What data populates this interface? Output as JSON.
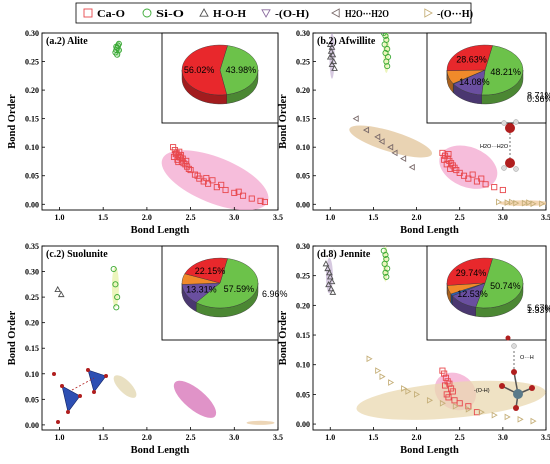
{
  "legend": {
    "items": [
      {
        "label": "Ca-O",
        "marker": "square",
        "color": "#e8474c"
      },
      {
        "label": "Si-O",
        "marker": "circle",
        "color": "#3aa935"
      },
      {
        "label": "H-O-H",
        "marker": "triangle-up",
        "color": "#505050"
      },
      {
        "label": "-(O-H)",
        "marker": "triangle-down",
        "color": "#8a6a9e"
      },
      {
        "label": "H2O···H2O",
        "marker": "triangle-left",
        "color": "#7a6a6a"
      },
      {
        "label": "-(O···H)",
        "marker": "triangle-right",
        "color": "#c6b07a"
      }
    ]
  },
  "chart_data": [
    {
      "type": "scatter",
      "title": "(a.2) Alite",
      "xlabel": "Bond Length",
      "ylabel": "Bond Order",
      "xlim": [
        0.8,
        3.5
      ],
      "ylim": [
        -0.01,
        0.3
      ],
      "xticks": [
        "1.0",
        "1.5",
        "2.0",
        "2.5",
        "3.0",
        "3.5"
      ],
      "yticks": [
        "0.00",
        "0.05",
        "0.10",
        "0.15",
        "0.20",
        "0.25",
        "0.30"
      ],
      "regions": [
        {
          "series": "Si-O",
          "cx": 1.67,
          "cy": 0.272,
          "rx": 0.035,
          "ry": 0.014,
          "angle": 0,
          "color": "#9fd89a"
        },
        {
          "series": "Ca-O",
          "cx": 2.78,
          "cy": 0.042,
          "rx": 0.65,
          "ry": 0.04,
          "angle": 22,
          "color": "#f3a7cf"
        }
      ],
      "series": [
        {
          "name": "Si-O",
          "marker": "circle",
          "color": "#3aa935",
          "points": [
            [
              1.64,
              0.266
            ],
            [
              1.65,
              0.27
            ],
            [
              1.66,
              0.274
            ],
            [
              1.67,
              0.278
            ],
            [
              1.68,
              0.281
            ],
            [
              1.66,
              0.262
            ],
            [
              1.68,
              0.27
            ],
            [
              1.65,
              0.276
            ]
          ]
        },
        {
          "name": "Ca-O",
          "marker": "square",
          "color": "#e8474c",
          "points": [
            [
              2.3,
              0.1
            ],
            [
              2.32,
              0.095
            ],
            [
              2.34,
              0.09
            ],
            [
              2.36,
              0.085
            ],
            [
              2.38,
              0.082
            ],
            [
              2.35,
              0.078
            ],
            [
              2.4,
              0.075
            ],
            [
              2.42,
              0.072
            ],
            [
              2.33,
              0.088
            ],
            [
              2.37,
              0.092
            ],
            [
              2.41,
              0.08
            ],
            [
              2.44,
              0.07
            ],
            [
              2.46,
              0.066
            ],
            [
              2.48,
              0.062
            ],
            [
              2.39,
              0.086
            ],
            [
              2.31,
              0.083
            ],
            [
              2.36,
              0.074
            ],
            [
              2.45,
              0.076
            ],
            [
              2.5,
              0.06
            ],
            [
              2.55,
              0.052
            ],
            [
              2.6,
              0.045
            ],
            [
              2.65,
              0.04
            ],
            [
              2.7,
              0.036
            ],
            [
              2.8,
              0.03
            ],
            [
              2.9,
              0.025
            ],
            [
              3.0,
              0.02
            ],
            [
              3.1,
              0.015
            ],
            [
              3.2,
              0.01
            ],
            [
              3.3,
              0.006
            ],
            [
              3.35,
              0.004
            ],
            [
              2.75,
              0.042
            ],
            [
              2.58,
              0.05
            ],
            [
              2.68,
              0.046
            ],
            [
              2.85,
              0.034
            ],
            [
              3.05,
              0.022
            ]
          ]
        }
      ],
      "pie": {
        "segments": [
          {
            "label": "43.98%",
            "value": 43.98,
            "color": "#6cc24a"
          },
          {
            "label": "56.02%",
            "value": 56.02,
            "color": "#e8282c"
          }
        ]
      }
    },
    {
      "type": "scatter",
      "title": "(b.2) Afwillite",
      "xlabel": "Bond Length",
      "ylabel": "Bond Order",
      "xlim": [
        0.8,
        3.5
      ],
      "ylim": [
        -0.01,
        0.3
      ],
      "xticks": [
        "1.0",
        "1.5",
        "2.0",
        "2.5",
        "3.0",
        "3.5"
      ],
      "yticks": [
        "0.00",
        "0.05",
        "0.10",
        "0.15",
        "0.20",
        "0.25",
        "0.30"
      ],
      "regions": [
        {
          "series": "H-O-H",
          "cx": 1.02,
          "cy": 0.26,
          "rx": 0.03,
          "ry": 0.04,
          "angle": 0,
          "color": "#c8b7d6"
        },
        {
          "series": "Si-O",
          "cx": 1.65,
          "cy": 0.27,
          "rx": 0.035,
          "ry": 0.04,
          "angle": 0,
          "color": "#e6f2a6"
        },
        {
          "series": "H2O···H2O",
          "cx": 1.7,
          "cy": 0.11,
          "rx": 0.5,
          "ry": 0.018,
          "angle": 17,
          "color": "#e2c49a"
        },
        {
          "series": "Ca-O",
          "cx": 2.6,
          "cy": 0.065,
          "rx": 0.35,
          "ry": 0.035,
          "angle": 22,
          "color": "#f3a7cf"
        },
        {
          "series": "-(O···H)",
          "cx": 3.25,
          "cy": 0.002,
          "rx": 0.3,
          "ry": 0.005,
          "angle": 0,
          "color": "#f0c898"
        }
      ],
      "series": [
        {
          "name": "H-O-H",
          "marker": "triangle-up",
          "color": "#505050",
          "points": [
            [
              1.0,
              0.28
            ],
            [
              1.02,
              0.275
            ],
            [
              1.01,
              0.268
            ],
            [
              1.03,
              0.262
            ],
            [
              1.0,
              0.258
            ],
            [
              1.04,
              0.25
            ],
            [
              1.02,
              0.245
            ],
            [
              1.05,
              0.238
            ]
          ]
        },
        {
          "name": "Si-O",
          "marker": "circle",
          "color": "#3aa935",
          "points": [
            [
              1.62,
              0.3
            ],
            [
              1.64,
              0.295
            ],
            [
              1.65,
              0.288
            ],
            [
              1.63,
              0.28
            ],
            [
              1.66,
              0.272
            ],
            [
              1.64,
              0.265
            ],
            [
              1.67,
              0.258
            ],
            [
              1.65,
              0.25
            ],
            [
              1.66,
              0.242
            ]
          ]
        },
        {
          "name": "H2O···H2O",
          "marker": "triangle-left",
          "color": "#7a6a6a",
          "points": [
            [
              1.3,
              0.15
            ],
            [
              1.42,
              0.13
            ],
            [
              1.55,
              0.118
            ],
            [
              1.7,
              0.1
            ],
            [
              1.85,
              0.08
            ],
            [
              1.95,
              0.065
            ],
            [
              1.75,
              0.09
            ],
            [
              1.6,
              0.11
            ]
          ]
        },
        {
          "name": "Ca-O",
          "marker": "square",
          "color": "#e8474c",
          "points": [
            [
              2.3,
              0.09
            ],
            [
              2.33,
              0.085
            ],
            [
              2.36,
              0.08
            ],
            [
              2.38,
              0.076
            ],
            [
              2.4,
              0.072
            ],
            [
              2.35,
              0.07
            ],
            [
              2.42,
              0.068
            ],
            [
              2.32,
              0.078
            ],
            [
              2.37,
              0.088
            ],
            [
              2.44,
              0.064
            ],
            [
              2.46,
              0.06
            ],
            [
              2.5,
              0.055
            ],
            [
              2.55,
              0.05
            ],
            [
              2.6,
              0.045
            ],
            [
              2.7,
              0.04
            ],
            [
              2.8,
              0.035
            ],
            [
              2.9,
              0.03
            ],
            [
              3.0,
              0.025
            ],
            [
              2.65,
              0.052
            ],
            [
              2.75,
              0.045
            ],
            [
              2.39,
              0.062
            ]
          ]
        },
        {
          "name": "-(O···H)",
          "marker": "triangle-right",
          "color": "#c6b07a",
          "points": [
            [
              2.95,
              0.004
            ],
            [
              3.05,
              0.003
            ],
            [
              3.15,
              0.002
            ],
            [
              3.25,
              0.002
            ],
            [
              3.35,
              0.001
            ],
            [
              3.45,
              0.001
            ],
            [
              3.1,
              0.004
            ],
            [
              3.3,
              0.003
            ]
          ]
        }
      ],
      "pie": {
        "segments": [
          {
            "label": "48.21%",
            "value": 48.21,
            "color": "#6cc24a"
          },
          {
            "label": "14.08%",
            "value": 14.08,
            "color": "#6a4fa0"
          },
          {
            "label": "0.36%",
            "value": 0.36,
            "color": "#2d5fb3"
          },
          {
            "label": "8.71%",
            "value": 8.71,
            "color": "#f08a2a"
          },
          {
            "label": "28.63%",
            "value": 28.63,
            "color": "#e8282c"
          }
        ]
      },
      "annotations": [
        "H2O···H2O"
      ]
    },
    {
      "type": "scatter",
      "title": "(c.2) Suolunite",
      "xlabel": "Bond Length",
      "ylabel": "Bond Order",
      "xlim": [
        0.8,
        3.5
      ],
      "ylim": [
        -0.01,
        0.35
      ],
      "xticks": [
        "1.0",
        "1.5",
        "2.0",
        "2.5",
        "3.0",
        "3.5"
      ],
      "yticks": [
        "0.00",
        "0.05",
        "0.10",
        "0.15",
        "0.20",
        "0.25",
        "0.30",
        "0.35"
      ],
      "regions": [
        {
          "series": "Si-O",
          "cx": 1.64,
          "cy": 0.27,
          "rx": 0.04,
          "ry": 0.04,
          "angle": 0,
          "color": "#e6f2a6"
        },
        {
          "series": "H2O···H2O",
          "cx": 1.75,
          "cy": 0.075,
          "rx": 0.17,
          "ry": 0.012,
          "angle": 45,
          "color": "#e2d6ae"
        },
        {
          "series": "Ca-O",
          "cx": 2.55,
          "cy": 0.05,
          "rx": 0.3,
          "ry": 0.02,
          "angle": 40,
          "color": "#d56fb6"
        },
        {
          "series": "-(O···H)",
          "cx": 3.3,
          "cy": 0.004,
          "rx": 0.16,
          "ry": 0.004,
          "angle": 0,
          "color": "#e7c89f"
        }
      ],
      "series": [
        {
          "name": "H-O-H",
          "marker": "triangle-up",
          "color": "#505050",
          "points": [
            [
              0.98,
              0.265
            ],
            [
              1.02,
              0.255
            ]
          ]
        },
        {
          "name": "Si-O",
          "marker": "circle",
          "color": "#3aa935",
          "points": [
            [
              1.62,
              0.305
            ],
            [
              1.64,
              0.275
            ],
            [
              1.66,
              0.25
            ],
            [
              1.65,
              0.23
            ]
          ]
        }
      ],
      "pie": {
        "segments": [
          {
            "label": "57.59%",
            "value": 57.59,
            "color": "#6cc24a"
          },
          {
            "label": "13.31%",
            "value": 13.31,
            "color": "#6a4fa0"
          },
          {
            "label": "6.96%",
            "value": 6.96,
            "color": "#f08a2a"
          },
          {
            "label": "22.15%",
            "value": 22.15,
            "color": "#e8282c"
          }
        ]
      }
    },
    {
      "type": "scatter",
      "title": "(d.8) Jennite",
      "xlabel": "Bond Length",
      "ylabel": "Bond Order",
      "xlim": [
        0.8,
        3.5
      ],
      "ylim": [
        -0.01,
        0.3
      ],
      "xticks": [
        "1.0",
        "1.5",
        "2.0",
        "2.5",
        "3.0",
        "3.5"
      ],
      "yticks": [
        "0.00",
        "0.05",
        "0.10",
        "0.15",
        "0.20",
        "0.25",
        "0.30"
      ],
      "regions": [
        {
          "series": "H-O-H",
          "cx": 0.99,
          "cy": 0.25,
          "rx": 0.04,
          "ry": 0.03,
          "angle": 0,
          "color": "#c8b7d6"
        },
        {
          "series": "Si-O",
          "cx": 1.64,
          "cy": 0.27,
          "rx": 0.03,
          "ry": 0.03,
          "angle": 0,
          "color": "#e6f2a6"
        },
        {
          "series": "Ca-O",
          "cx": 2.45,
          "cy": 0.055,
          "rx": 0.25,
          "ry": 0.03,
          "angle": 30,
          "color": "#f3a7cf"
        },
        {
          "series": "-(O···H)",
          "cx": 2.4,
          "cy": 0.04,
          "rx": 1.1,
          "ry": 0.03,
          "angle": -5,
          "color": "#ead8b0"
        }
      ],
      "series": [
        {
          "name": "H-O-H",
          "marker": "triangle-up",
          "color": "#505050",
          "points": [
            [
              0.95,
              0.27
            ],
            [
              0.97,
              0.262
            ],
            [
              0.99,
              0.255
            ],
            [
              1.0,
              0.248
            ],
            [
              1.02,
              0.24
            ],
            [
              0.98,
              0.235
            ],
            [
              1.01,
              0.228
            ],
            [
              1.03,
              0.222
            ]
          ]
        },
        {
          "name": "Si-O",
          "marker": "circle",
          "color": "#3aa935",
          "points": [
            [
              1.62,
              0.292
            ],
            [
              1.64,
              0.285
            ],
            [
              1.65,
              0.278
            ],
            [
              1.63,
              0.27
            ],
            [
              1.66,
              0.262
            ],
            [
              1.64,
              0.255
            ],
            [
              1.65,
              0.248
            ]
          ]
        },
        {
          "name": "Ca-O",
          "marker": "square",
          "color": "#e8474c",
          "points": [
            [
              2.3,
              0.09
            ],
            [
              2.32,
              0.085
            ],
            [
              2.34,
              0.078
            ],
            [
              2.36,
              0.072
            ],
            [
              2.38,
              0.068
            ],
            [
              2.33,
              0.065
            ],
            [
              2.4,
              0.06
            ],
            [
              2.42,
              0.055
            ],
            [
              2.35,
              0.05
            ],
            [
              2.37,
              0.045
            ],
            [
              2.44,
              0.04
            ],
            [
              2.5,
              0.035
            ],
            [
              2.6,
              0.03
            ],
            [
              2.7,
              0.02
            ]
          ]
        },
        {
          "name": "-(O···H)",
          "marker": "triangle-right",
          "color": "#c6b07a",
          "points": [
            [
              1.45,
              0.11
            ],
            [
              1.55,
              0.09
            ],
            [
              1.7,
              0.07
            ],
            [
              1.85,
              0.06
            ],
            [
              2.0,
              0.05
            ],
            [
              2.15,
              0.04
            ],
            [
              2.3,
              0.035
            ],
            [
              2.45,
              0.03
            ],
            [
              2.6,
              0.025
            ],
            [
              2.75,
              0.02
            ],
            [
              2.9,
              0.015
            ],
            [
              3.05,
              0.012
            ],
            [
              3.2,
              0.008
            ],
            [
              3.35,
              0.005
            ],
            [
              1.6,
              0.08
            ],
            [
              1.9,
              0.055
            ]
          ]
        }
      ],
      "pie": {
        "segments": [
          {
            "label": "50.74%",
            "value": 50.74,
            "color": "#6cc24a"
          },
          {
            "label": "12.53%",
            "value": 12.53,
            "color": "#6a4fa0"
          },
          {
            "label": "1.33%",
            "value": 1.33,
            "color": "#2d5fb3"
          },
          {
            "label": "5.67%",
            "value": 5.67,
            "color": "#f08a2a"
          },
          {
            "label": "29.74%",
            "value": 29.74,
            "color": "#e8282c"
          }
        ]
      },
      "annotations": [
        "O···H",
        "-(O-H)"
      ]
    }
  ]
}
